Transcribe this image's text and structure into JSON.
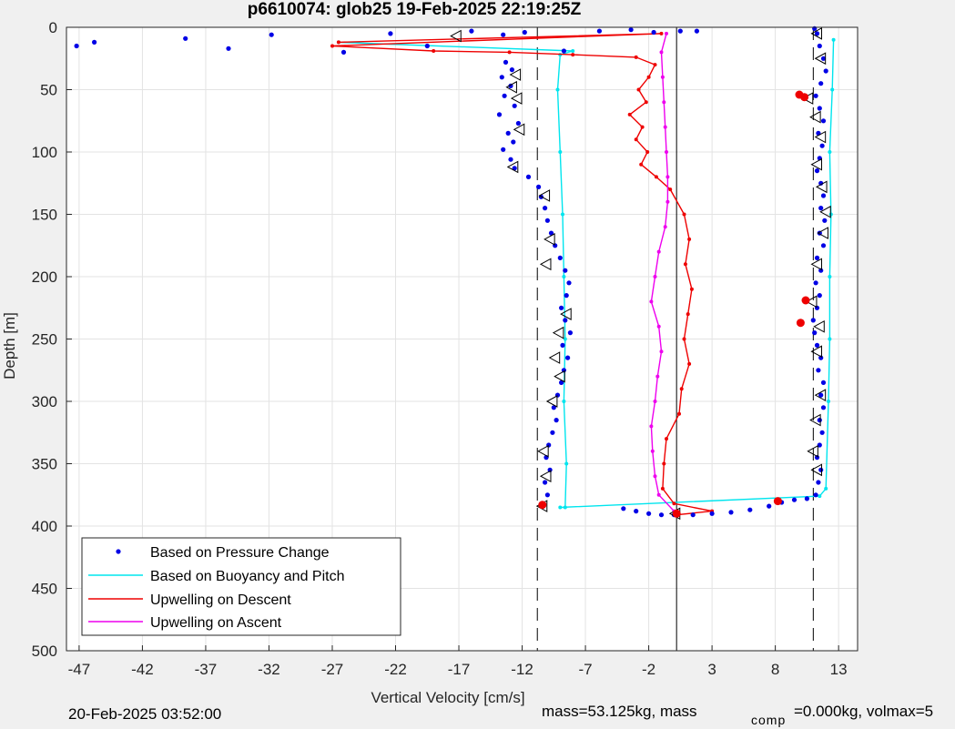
{
  "chart_data": {
    "type": "scatter",
    "title": "p6610074: glob25 19-Feb-2025 22:19:25Z",
    "xlabel": "Vertical Velocity [cm/s]",
    "ylabel": "Depth [m]",
    "xlim": [
      -48,
      14.5
    ],
    "ylim": [
      0,
      500
    ],
    "y_reversed": true,
    "grid": true,
    "xticks": [
      -47,
      -42,
      -37,
      -32,
      -27,
      -22,
      -17,
      -12,
      -7,
      -2,
      3,
      8,
      13
    ],
    "yticks": [
      0,
      50,
      100,
      150,
      200,
      250,
      300,
      350,
      400,
      450,
      500
    ],
    "legend_position": "bottom-left",
    "reference_lines": {
      "dashed_x": [
        -10.8,
        11.0
      ],
      "solid_x": [
        0.2
      ]
    },
    "series": [
      {
        "name": "Based on Pressure Change",
        "style": "dots",
        "color": "#0000e6",
        "points": [
          [
            -47.2,
            15
          ],
          [
            -45.8,
            12
          ],
          [
            -38.6,
            9
          ],
          [
            -35.2,
            17
          ],
          [
            -31.8,
            6
          ],
          [
            -26.1,
            20
          ],
          [
            -22.4,
            5
          ],
          [
            -19.5,
            15
          ],
          [
            -16.0,
            3
          ],
          [
            -13.5,
            6
          ],
          [
            -11.8,
            4
          ],
          [
            -8.7,
            19
          ],
          [
            -5.9,
            3
          ],
          [
            -3.4,
            2
          ],
          [
            -1.6,
            4
          ],
          [
            0.5,
            3
          ],
          [
            1.8,
            3
          ],
          [
            -13.3,
            28
          ],
          [
            -12.8,
            34
          ],
          [
            -13.6,
            40
          ],
          [
            -12.9,
            47
          ],
          [
            -13.4,
            55
          ],
          [
            -12.6,
            63
          ],
          [
            -13.8,
            70
          ],
          [
            -12.3,
            77
          ],
          [
            -13.1,
            85
          ],
          [
            -12.7,
            92
          ],
          [
            -13.5,
            98
          ],
          [
            -12.9,
            106
          ],
          [
            -12.6,
            113
          ],
          [
            -11.5,
            120
          ],
          [
            -10.7,
            128
          ],
          [
            -10.5,
            136
          ],
          [
            -10.2,
            145
          ],
          [
            -10.0,
            155
          ],
          [
            -9.7,
            165
          ],
          [
            -9.4,
            175
          ],
          [
            -9.0,
            185
          ],
          [
            -8.6,
            195
          ],
          [
            -8.3,
            205
          ],
          [
            -8.5,
            215
          ],
          [
            -8.9,
            225
          ],
          [
            -8.6,
            235
          ],
          [
            -8.2,
            245
          ],
          [
            -8.8,
            255
          ],
          [
            -8.4,
            265
          ],
          [
            -8.7,
            275
          ],
          [
            -8.9,
            285
          ],
          [
            -9.2,
            295
          ],
          [
            -9.5,
            305
          ],
          [
            -9.3,
            315
          ],
          [
            -9.6,
            325
          ],
          [
            -9.9,
            335
          ],
          [
            -10.1,
            345
          ],
          [
            -9.8,
            355
          ],
          [
            -10.2,
            365
          ],
          [
            -10.0,
            375
          ],
          [
            -10.3,
            383
          ],
          [
            -4.0,
            386
          ],
          [
            -3.0,
            388
          ],
          [
            -2.0,
            390
          ],
          [
            -1.0,
            391
          ],
          [
            0.0,
            391
          ],
          [
            1.5,
            391
          ],
          [
            3.0,
            390
          ],
          [
            4.5,
            389
          ],
          [
            6.0,
            387
          ],
          [
            7.5,
            384
          ],
          [
            8.5,
            381
          ],
          [
            9.5,
            379
          ],
          [
            10.5,
            378
          ],
          [
            11.2,
            375
          ],
          [
            11.4,
            365
          ],
          [
            11.6,
            355
          ],
          [
            11.3,
            345
          ],
          [
            11.5,
            335
          ],
          [
            11.7,
            325
          ],
          [
            11.5,
            315
          ],
          [
            11.8,
            305
          ],
          [
            11.6,
            295
          ],
          [
            11.8,
            285
          ],
          [
            11.4,
            275
          ],
          [
            11.6,
            265
          ],
          [
            11.3,
            255
          ],
          [
            11.1,
            245
          ],
          [
            11.0,
            235
          ],
          [
            11.3,
            225
          ],
          [
            11.5,
            215
          ],
          [
            11.2,
            205
          ],
          [
            11.6,
            195
          ],
          [
            11.3,
            185
          ],
          [
            11.8,
            175
          ],
          [
            11.5,
            165
          ],
          [
            11.9,
            155
          ],
          [
            11.6,
            145
          ],
          [
            11.8,
            135
          ],
          [
            11.6,
            125
          ],
          [
            11.3,
            115
          ],
          [
            11.5,
            105
          ],
          [
            11.7,
            95
          ],
          [
            11.4,
            85
          ],
          [
            11.8,
            75
          ],
          [
            11.5,
            65
          ],
          [
            11.2,
            55
          ],
          [
            11.6,
            45
          ],
          [
            12.0,
            35
          ],
          [
            11.8,
            25
          ],
          [
            11.5,
            15
          ],
          [
            11.3,
            5
          ],
          [
            11.1,
            1
          ]
        ]
      },
      {
        "name": "Based on Buoyancy and Pitch",
        "style": "line",
        "color": "#00e5ee",
        "points": [
          [
            -26.5,
            12
          ],
          [
            -8.0,
            19
          ],
          [
            -9.0,
            22
          ],
          [
            -9.2,
            50
          ],
          [
            -9.0,
            100
          ],
          [
            -8.8,
            150
          ],
          [
            -8.7,
            200
          ],
          [
            -8.6,
            250
          ],
          [
            -8.7,
            300
          ],
          [
            -8.5,
            350
          ],
          [
            -8.6,
            385
          ],
          [
            -9.0,
            385
          ],
          [
            11.5,
            376
          ],
          [
            12.0,
            370
          ],
          [
            12.2,
            300
          ],
          [
            12.3,
            250
          ],
          [
            12.3,
            200
          ],
          [
            12.4,
            150
          ],
          [
            12.3,
            100
          ],
          [
            12.5,
            50
          ],
          [
            12.6,
            10
          ]
        ]
      },
      {
        "name": "Upwelling on Descent",
        "style": "line",
        "color": "#ee0000",
        "points": [
          [
            -26.5,
            12
          ],
          [
            -1.0,
            5
          ],
          [
            -27.0,
            15
          ],
          [
            -19.0,
            19
          ],
          [
            -13.0,
            20
          ],
          [
            -8.0,
            22
          ],
          [
            -3.0,
            24
          ],
          [
            -1.5,
            30
          ],
          [
            -2.0,
            40
          ],
          [
            -2.8,
            50
          ],
          [
            -2.2,
            60
          ],
          [
            -3.5,
            70
          ],
          [
            -2.5,
            80
          ],
          [
            -3.0,
            90
          ],
          [
            -2.1,
            100
          ],
          [
            -2.6,
            110
          ],
          [
            -1.4,
            120
          ],
          [
            -0.3,
            130
          ],
          [
            0.8,
            150
          ],
          [
            1.2,
            170
          ],
          [
            0.9,
            190
          ],
          [
            1.4,
            210
          ],
          [
            1.1,
            230
          ],
          [
            0.8,
            250
          ],
          [
            1.2,
            270
          ],
          [
            0.6,
            290
          ],
          [
            0.4,
            310
          ],
          [
            -0.6,
            330
          ],
          [
            -0.8,
            350
          ],
          [
            -0.9,
            370
          ],
          [
            0.0,
            382
          ],
          [
            3.0,
            388
          ],
          [
            0.2,
            391
          ]
        ]
      },
      {
        "name": "Upwelling on Ascent",
        "style": "line",
        "color": "#ee00ee",
        "points": [
          [
            0.0,
            388
          ],
          [
            -1.2,
            375
          ],
          [
            -1.5,
            360
          ],
          [
            -1.7,
            340
          ],
          [
            -1.8,
            320
          ],
          [
            -1.5,
            300
          ],
          [
            -1.3,
            280
          ],
          [
            -1.0,
            260
          ],
          [
            -1.2,
            240
          ],
          [
            -1.8,
            220
          ],
          [
            -1.5,
            200
          ],
          [
            -1.2,
            180
          ],
          [
            -0.7,
            160
          ],
          [
            -0.5,
            140
          ],
          [
            -0.5,
            120
          ],
          [
            -0.6,
            100
          ],
          [
            -0.7,
            80
          ],
          [
            -0.8,
            60
          ],
          [
            -0.9,
            40
          ],
          [
            -1.0,
            20
          ],
          [
            -0.6,
            5
          ]
        ]
      }
    ],
    "triangle_markers": [
      [
        -17.2,
        7
      ],
      [
        -12.5,
        38
      ],
      [
        -12.8,
        48
      ],
      [
        -12.4,
        57
      ],
      [
        -12.2,
        82
      ],
      [
        -12.7,
        112
      ],
      [
        -10.2,
        135
      ],
      [
        -9.8,
        170
      ],
      [
        -10.1,
        190
      ],
      [
        -8.5,
        230
      ],
      [
        -9.1,
        245
      ],
      [
        -9.4,
        265
      ],
      [
        -9.0,
        280
      ],
      [
        -9.6,
        300
      ],
      [
        -10.3,
        340
      ],
      [
        -10.1,
        360
      ],
      [
        -10.4,
        384
      ],
      [
        0.1,
        390
      ],
      [
        11.3,
        355
      ],
      [
        11.0,
        340
      ],
      [
        11.2,
        315
      ],
      [
        11.6,
        295
      ],
      [
        11.3,
        260
      ],
      [
        11.5,
        240
      ],
      [
        10.9,
        220
      ],
      [
        11.3,
        190
      ],
      [
        11.8,
        165
      ],
      [
        12.0,
        148
      ],
      [
        11.7,
        128
      ],
      [
        11.3,
        110
      ],
      [
        11.6,
        88
      ],
      [
        11.2,
        72
      ],
      [
        10.6,
        57
      ],
      [
        11.6,
        25
      ],
      [
        11.3,
        5
      ]
    ],
    "red_markers": [
      [
        9.9,
        54
      ],
      [
        10.3,
        56
      ],
      [
        10.4,
        219
      ],
      [
        10.0,
        237
      ],
      [
        8.2,
        380
      ],
      [
        -10.4,
        383
      ],
      [
        0.2,
        390
      ]
    ]
  },
  "footer": {
    "timestamp": "20-Feb-2025 03:52:00",
    "mass_text": "mass=53.125kg, mass",
    "comp_subscript": "comp",
    "mass_comp_text": "=0.000kg, volmax=5"
  }
}
